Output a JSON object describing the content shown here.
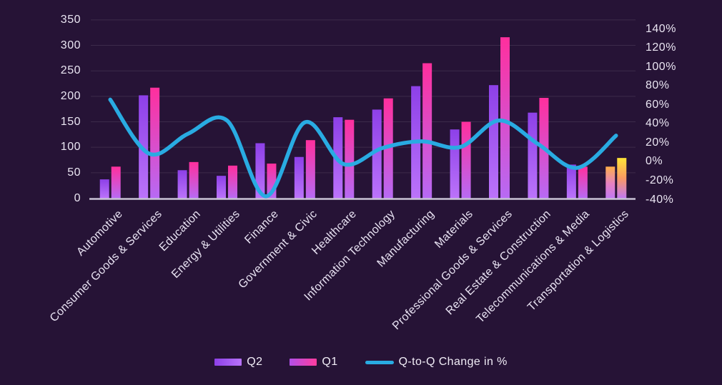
{
  "chart_data": {
    "type": "combo-bar-line",
    "title": "",
    "categories": [
      "Automotive",
      "Consumer Goods & Services",
      "Education",
      "Energy & Utilities",
      "Finance",
      "Government & Civic",
      "Healthcare",
      "Information Technology",
      "Manufacturing",
      "Materials",
      "Professional Goods & Services",
      "Real Estate & Construction",
      "Telecommunications & Media",
      "Transportation & Logistics"
    ],
    "series": [
      {
        "name": "Q2",
        "type": "bar",
        "axis": "left",
        "values": [
          37,
          202,
          55,
          44,
          108,
          81,
          159,
          174,
          220,
          135,
          222,
          168,
          66,
          62
        ]
      },
      {
        "name": "Q1",
        "type": "bar",
        "axis": "left",
        "values": [
          62,
          217,
          71,
          64,
          68,
          114,
          154,
          196,
          265,
          150,
          316,
          197,
          62,
          79
        ]
      },
      {
        "name": "Q-to-Q Change in %",
        "type": "line",
        "axis": "right",
        "values": [
          64,
          7,
          28,
          42,
          -38,
          40,
          -4,
          13,
          20,
          14,
          42,
          17,
          -8,
          26
        ]
      }
    ],
    "left_axis": {
      "range": [
        0,
        350
      ],
      "tick_step": 50,
      "tick_labels": [
        "0",
        "50",
        "100",
        "150",
        "200",
        "250",
        "300",
        "350"
      ]
    },
    "right_axis": {
      "range": [
        -40,
        140
      ],
      "tick_step": 20,
      "tick_labels": [
        "140%",
        "120%",
        "100%",
        "80%",
        "60%",
        "40%",
        "20%",
        "0%",
        "-20%",
        "-40%"
      ]
    },
    "legend": {
      "position": "bottom",
      "items": [
        "Q2",
        "Q1",
        "Q-to-Q Change in %"
      ]
    },
    "grid": "horizontal-only",
    "highlight": {
      "category": "Transportation & Logistics",
      "note": "bars drawn with orange/yellow gradient instead of purple/pink"
    },
    "colors": {
      "background": "#261336",
      "gridline": "rgba(255,255,255,0.10)",
      "baseline": "#c9c3d6",
      "axis_text": "#eae5f2",
      "line": "#29abe2",
      "q2_bar_top": "#8d40e8",
      "q2_bar_bottom": "#bb73fa",
      "q1_bar_top": "#ff2f9d",
      "q1_bar_bottom": "#b76af4",
      "highlight_q2_top": "#ffae49",
      "highlight_q2_mid": "#e580c4",
      "highlight_q1_top": "#ffe437",
      "highlight_q1_mid": "#fb9a62",
      "highlight_bottom": "#c178f2"
    }
  }
}
